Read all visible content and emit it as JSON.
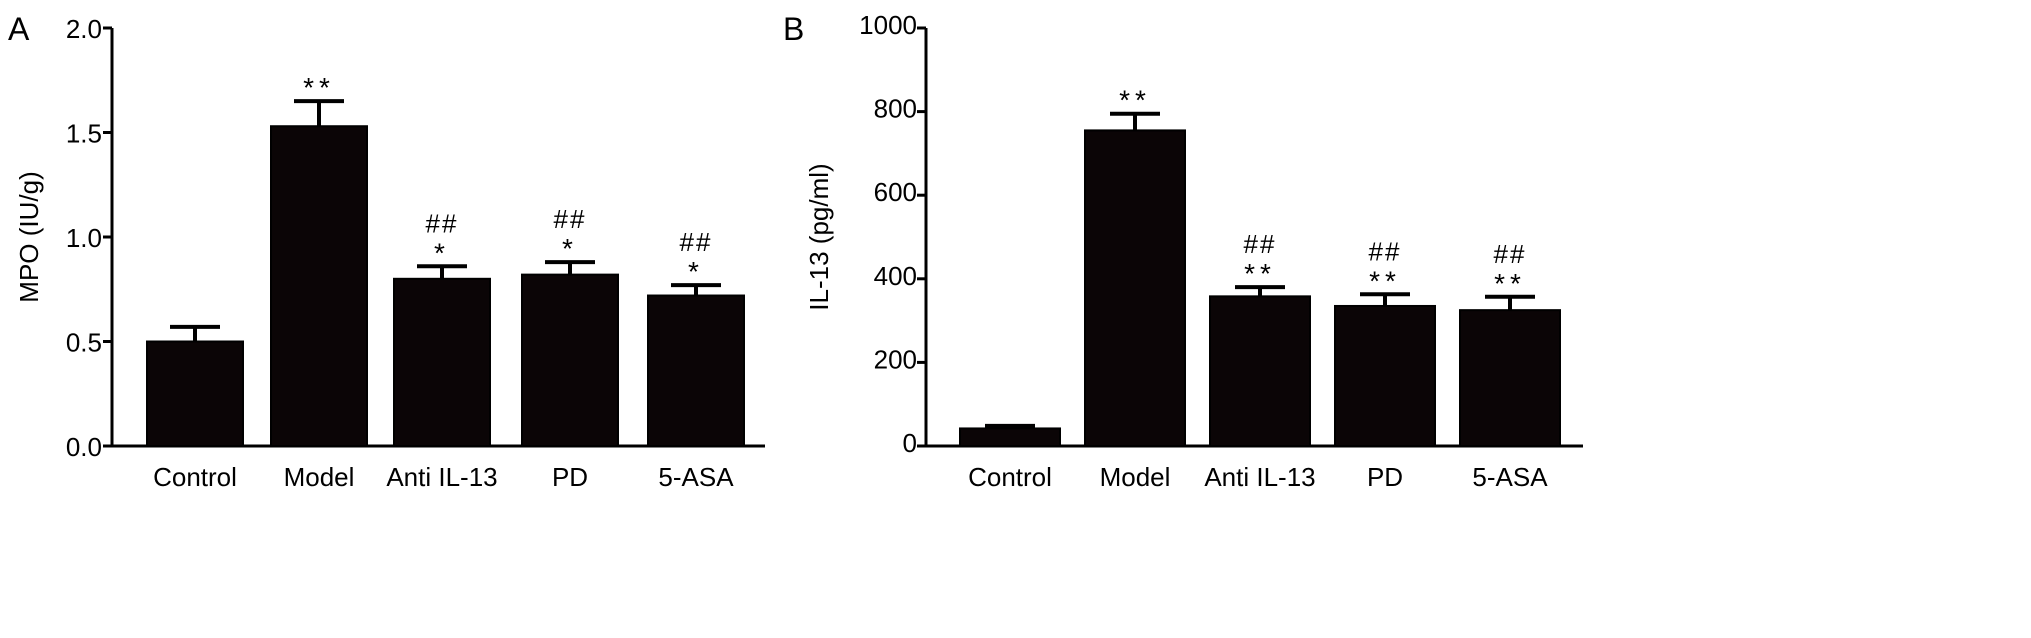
{
  "chart_data": [
    {
      "panel": "A",
      "type": "bar",
      "categories": [
        "Control",
        "Model",
        "Anti IL-13",
        "PD",
        "5-ASA"
      ],
      "values": [
        0.5,
        1.53,
        0.8,
        0.82,
        0.72
      ],
      "errors": [
        0.07,
        0.12,
        0.06,
        0.06,
        0.05
      ],
      "annotations": [
        {
          "stars": "",
          "hashes": ""
        },
        {
          "stars": "**",
          "hashes": ""
        },
        {
          "stars": "*",
          "hashes": "##"
        },
        {
          "stars": "*",
          "hashes": "##"
        },
        {
          "stars": "*",
          "hashes": "##"
        }
      ],
      "ylabel": "MPO (IU/g)",
      "ylim": [
        0,
        2.0
      ],
      "yticks": [
        "0.0",
        "0.5",
        "1.0",
        "1.5",
        "2.0"
      ],
      "bar_color": "#0b0506"
    },
    {
      "panel": "B",
      "type": "bar",
      "categories": [
        "Control",
        "Model",
        "Anti IL-13",
        "PD",
        "5-ASA"
      ],
      "values": [
        42,
        755,
        358,
        335,
        325
      ],
      "errors": [
        6,
        40,
        22,
        28,
        32
      ],
      "annotations": [
        {
          "stars": "",
          "hashes": ""
        },
        {
          "stars": "**",
          "hashes": ""
        },
        {
          "stars": "**",
          "hashes": "##"
        },
        {
          "stars": "**",
          "hashes": "##"
        },
        {
          "stars": "**",
          "hashes": "##"
        }
      ],
      "ylabel": "IL-13 (pg/ml)",
      "ylim": [
        0,
        1000
      ],
      "yticks": [
        "0",
        "200",
        "400",
        "600",
        "800",
        "1000"
      ],
      "bar_color": "#0b0506"
    }
  ]
}
